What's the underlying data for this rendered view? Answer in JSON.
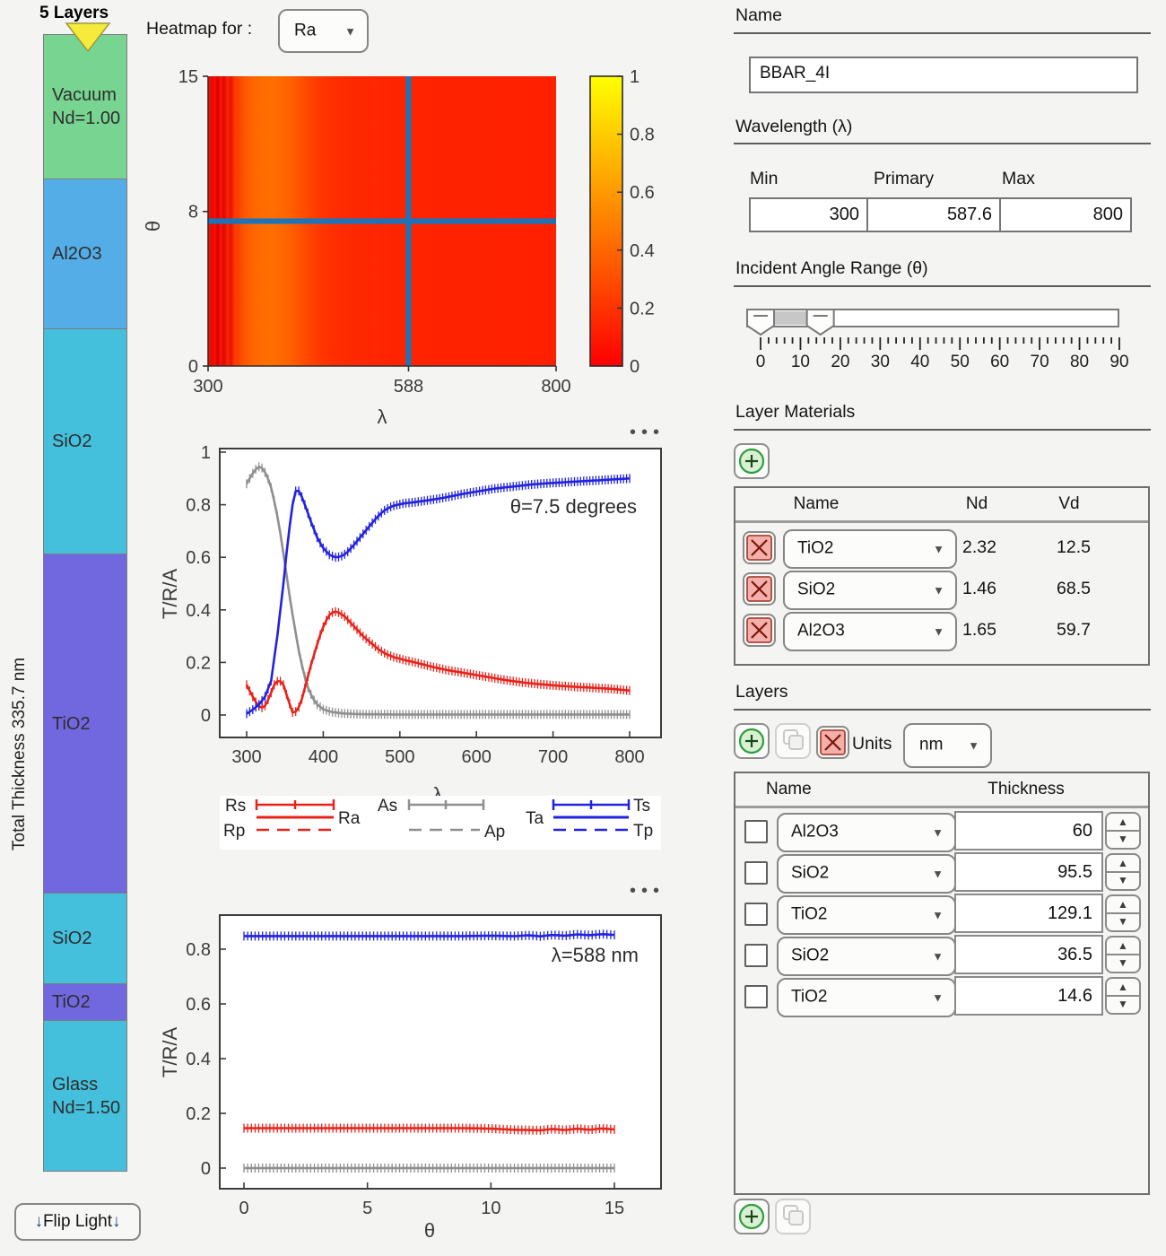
{
  "app": {
    "background": "#f4f4f2"
  },
  "icons": {
    "caret_down": "▼",
    "spinner_up": "▲",
    "spinner_down": "▼",
    "ellipsis": "•••",
    "down_arrow": "↓"
  },
  "stack": {
    "title": "5 Layers",
    "total_thickness": "Total Thickness 335.7 nm",
    "flip": {
      "arrow": "↓",
      "label": "Flip Light"
    },
    "layers": [
      {
        "lines": [
          "Vacuum",
          "Nd=1.00"
        ],
        "color": "#77d591"
      },
      {
        "lines": [
          "Al2O3"
        ],
        "color": "#55ade8"
      },
      {
        "lines": [
          "SiO2"
        ],
        "color": "#45c0dc"
      },
      {
        "lines": [
          "TiO2"
        ],
        "color": "#7168e0"
      },
      {
        "lines": [
          "SiO2"
        ],
        "color": "#45c0dc"
      },
      {
        "lines": [
          "TiO2"
        ],
        "color": "#7168e0"
      },
      {
        "lines": [
          "Glass",
          "Nd=1.50"
        ],
        "color": "#45c0dc"
      }
    ]
  },
  "heatmap_control": {
    "label": "Heatmap for :",
    "selected": "Ra"
  },
  "legend": {
    "entries": [
      "Rs",
      "Ra",
      "Rp",
      "As",
      "Ap",
      "Ta",
      "Ts",
      "Tp"
    ]
  },
  "panel": {
    "name": {
      "label": "Name",
      "value": "BBAR_4I"
    },
    "wavelength": {
      "label": "Wavelength (λ)",
      "min_label": "Min",
      "primary_label": "Primary",
      "max_label": "Max",
      "min": "300",
      "primary": "587.6",
      "max": "800"
    },
    "angle_range": {
      "label": "Incident Angle Range (θ)",
      "min": 0,
      "max": 90,
      "low": 0,
      "high": 15,
      "tick_labels": [
        "0",
        "10",
        "20",
        "30",
        "40",
        "50",
        "60",
        "70",
        "80",
        "90"
      ]
    },
    "materials": {
      "label": "Layer Materials",
      "columns": {
        "name": "Name",
        "nd": "Nd",
        "vd": "Vd"
      },
      "rows": [
        {
          "name": "TiO2",
          "nd": "2.32",
          "vd": "12.5"
        },
        {
          "name": "SiO2",
          "nd": "1.46",
          "vd": "68.5"
        },
        {
          "name": "Al2O3",
          "nd": "1.65",
          "vd": "59.7"
        }
      ]
    },
    "layers": {
      "label": "Layers",
      "units_label": "Units",
      "units": "nm",
      "columns": {
        "name": "Name",
        "thickness": "Thickness"
      },
      "rows": [
        {
          "name": "Al2O3",
          "thickness": "60"
        },
        {
          "name": "SiO2",
          "thickness": "95.5"
        },
        {
          "name": "TiO2",
          "thickness": "129.1"
        },
        {
          "name": "SiO2",
          "thickness": "36.5"
        },
        {
          "name": "TiO2",
          "thickness": "14.6"
        }
      ]
    }
  },
  "chart_data": [
    {
      "id": "reflectance-heatmap",
      "type": "heatmap",
      "xlabel": "λ",
      "ylabel": "θ",
      "xlim": [
        300,
        800
      ],
      "ylim": [
        0,
        15
      ],
      "xticks": [
        "300",
        "588",
        "800"
      ],
      "xtick_values": [
        300,
        588,
        800
      ],
      "yticks": [
        "0",
        "8",
        "15"
      ],
      "ytick_values": [
        0,
        8,
        15
      ],
      "colorbar": {
        "min": 0,
        "max": 1,
        "ticks": [
          "0",
          "0.2",
          "0.4",
          "0.6",
          "0.8",
          "1"
        ],
        "tick_values": [
          0,
          0.2,
          0.4,
          0.6,
          0.8,
          1
        ],
        "colors_bottom_to_top": [
          "#ff0000",
          "#ff8000",
          "#ffff00"
        ]
      },
      "crosshair": {
        "lambda": 588,
        "theta": 7.5,
        "color": "#1874bd"
      },
      "gradient_stops": [
        [
          0.0,
          "#fb1100"
        ],
        [
          0.012,
          "#e80900"
        ],
        [
          0.02,
          "#fa1000"
        ],
        [
          0.028,
          "#d50000"
        ],
        [
          0.036,
          "#fb1600"
        ],
        [
          0.046,
          "#e00500"
        ],
        [
          0.056,
          "#fc2600"
        ],
        [
          0.066,
          "#e81200"
        ],
        [
          0.076,
          "#fd3a00"
        ],
        [
          0.088,
          "#f74200"
        ],
        [
          0.104,
          "#ff5700"
        ],
        [
          0.124,
          "#ff6200"
        ],
        [
          0.15,
          "#ff6b00"
        ],
        [
          0.184,
          "#ff6e00"
        ],
        [
          0.22,
          "#ff6600"
        ],
        [
          0.256,
          "#ff5600"
        ],
        [
          0.29,
          "#ff4500"
        ],
        [
          0.324,
          "#ff3700"
        ],
        [
          0.36,
          "#ff2e00"
        ],
        [
          0.42,
          "#fe2800"
        ],
        [
          0.5,
          "#ff2500"
        ],
        [
          0.6,
          "#ff2300"
        ],
        [
          0.72,
          "#fe2200"
        ],
        [
          0.86,
          "#ff2100"
        ],
        [
          1.0,
          "#ff2000"
        ]
      ]
    },
    {
      "id": "spectrum",
      "type": "line",
      "xlabel": "λ",
      "ylabel": "T/R/A",
      "annotation": "θ=7.5 degrees",
      "xlim": [
        300,
        800
      ],
      "ylim": [
        0,
        1
      ],
      "xticks": [
        "300",
        "400",
        "500",
        "600",
        "700",
        "800"
      ],
      "xtick_values": [
        300,
        400,
        500,
        600,
        700,
        800
      ],
      "yticks": [
        "0",
        "0.2",
        "0.4",
        "0.6",
        "0.8",
        "1"
      ],
      "ytick_values": [
        0,
        0.2,
        0.4,
        0.6,
        0.8,
        1
      ],
      "series": [
        {
          "name": "A (absorptance)",
          "color": "#8f8f8f",
          "points": [
            [
              300,
              0.88
            ],
            [
              305,
              0.905
            ],
            [
              310,
              0.928
            ],
            [
              315,
              0.945
            ],
            [
              320,
              0.94
            ],
            [
              326,
              0.915
            ],
            [
              332,
              0.865
            ],
            [
              338,
              0.79
            ],
            [
              344,
              0.69
            ],
            [
              350,
              0.575
            ],
            [
              356,
              0.455
            ],
            [
              362,
              0.345
            ],
            [
              368,
              0.245
            ],
            [
              374,
              0.165
            ],
            [
              380,
              0.105
            ],
            [
              386,
              0.065
            ],
            [
              392,
              0.04
            ],
            [
              400,
              0.022
            ],
            [
              410,
              0.012
            ],
            [
              425,
              0.006
            ],
            [
              450,
              0.003
            ],
            [
              500,
              0.002
            ],
            [
              600,
              0.002
            ],
            [
              700,
              0.002
            ],
            [
              800,
              0.002
            ]
          ]
        },
        {
          "name": "R (reflectance)",
          "color": "#e8231a",
          "points": [
            [
              300,
              0.115
            ],
            [
              306,
              0.08
            ],
            [
              312,
              0.05
            ],
            [
              318,
              0.025
            ],
            [
              324,
              0.035
            ],
            [
              330,
              0.07
            ],
            [
              336,
              0.115
            ],
            [
              342,
              0.135
            ],
            [
              348,
              0.115
            ],
            [
              354,
              0.06
            ],
            [
              360,
              0.01
            ],
            [
              366,
              0.015
            ],
            [
              372,
              0.06
            ],
            [
              378,
              0.125
            ],
            [
              384,
              0.19
            ],
            [
              390,
              0.25
            ],
            [
              396,
              0.305
            ],
            [
              402,
              0.35
            ],
            [
              408,
              0.38
            ],
            [
              414,
              0.395
            ],
            [
              420,
              0.39
            ],
            [
              428,
              0.375
            ],
            [
              436,
              0.35
            ],
            [
              444,
              0.325
            ],
            [
              452,
              0.3
            ],
            [
              462,
              0.275
            ],
            [
              472,
              0.25
            ],
            [
              482,
              0.232
            ],
            [
              492,
              0.22
            ],
            [
              505,
              0.21
            ],
            [
              520,
              0.2
            ],
            [
              540,
              0.185
            ],
            [
              560,
              0.172
            ],
            [
              580,
              0.162
            ],
            [
              600,
              0.152
            ],
            [
              620,
              0.142
            ],
            [
              640,
              0.132
            ],
            [
              660,
              0.124
            ],
            [
              680,
              0.118
            ],
            [
              700,
              0.113
            ],
            [
              725,
              0.108
            ],
            [
              750,
              0.104
            ],
            [
              775,
              0.1
            ],
            [
              800,
              0.093
            ]
          ]
        },
        {
          "name": "T (transmittance)",
          "color": "#2222e0",
          "points": [
            [
              300,
              0.005
            ],
            [
              308,
              0.02
            ],
            [
              316,
              0.04
            ],
            [
              324,
              0.07
            ],
            [
              332,
              0.13
            ],
            [
              340,
              0.3
            ],
            [
              348,
              0.5
            ],
            [
              354,
              0.67
            ],
            [
              360,
              0.8
            ],
            [
              365,
              0.865
            ],
            [
              370,
              0.845
            ],
            [
              376,
              0.8
            ],
            [
              384,
              0.735
            ],
            [
              392,
              0.675
            ],
            [
              400,
              0.635
            ],
            [
              408,
              0.61
            ],
            [
              415,
              0.6
            ],
            [
              422,
              0.602
            ],
            [
              430,
              0.615
            ],
            [
              438,
              0.64
            ],
            [
              448,
              0.675
            ],
            [
              458,
              0.71
            ],
            [
              468,
              0.745
            ],
            [
              478,
              0.775
            ],
            [
              490,
              0.795
            ],
            [
              505,
              0.805
            ],
            [
              520,
              0.81
            ],
            [
              540,
              0.818
            ],
            [
              560,
              0.828
            ],
            [
              580,
              0.84
            ],
            [
              600,
              0.85
            ],
            [
              625,
              0.862
            ],
            [
              650,
              0.87
            ],
            [
              675,
              0.878
            ],
            [
              700,
              0.883
            ],
            [
              730,
              0.888
            ],
            [
              760,
              0.893
            ],
            [
              800,
              0.9
            ]
          ]
        }
      ]
    },
    {
      "id": "angle-scan",
      "type": "line",
      "xlabel": "θ",
      "ylabel": "T/R/A",
      "annotation": "λ=588 nm",
      "xlim": [
        0,
        15
      ],
      "ylim": [
        0,
        0.9
      ],
      "xticks": [
        "0",
        "5",
        "10",
        "15"
      ],
      "xtick_values": [
        0,
        5,
        10,
        15
      ],
      "yticks": [
        "0",
        "0.2",
        "0.4",
        "0.6",
        "0.8"
      ],
      "ytick_values": [
        0,
        0.2,
        0.4,
        0.6,
        0.8
      ],
      "series": [
        {
          "name": "A (absorptance)",
          "color": "#8f8f8f",
          "points": [
            [
              0,
              0.0
            ],
            [
              15,
              0.0
            ]
          ]
        },
        {
          "name": "R (reflectance)",
          "color": "#e8231a",
          "points": [
            [
              0,
              0.146
            ],
            [
              9,
              0.146
            ],
            [
              10,
              0.144
            ],
            [
              11,
              0.14
            ],
            [
              12,
              0.138
            ],
            [
              12.5,
              0.143
            ],
            [
              13,
              0.139
            ],
            [
              13.5,
              0.144
            ],
            [
              14,
              0.14
            ],
            [
              14.5,
              0.145
            ],
            [
              15,
              0.141
            ]
          ]
        },
        {
          "name": "T (transmittance)",
          "color": "#2222e0",
          "points": [
            [
              0,
              0.848
            ],
            [
              9,
              0.848
            ],
            [
              10,
              0.849
            ],
            [
              11,
              0.8475
            ],
            [
              11.5,
              0.851
            ],
            [
              12,
              0.847
            ],
            [
              12.5,
              0.852
            ],
            [
              13,
              0.849
            ],
            [
              13.5,
              0.854
            ],
            [
              14,
              0.851
            ],
            [
              14.5,
              0.855
            ],
            [
              15,
              0.852
            ]
          ]
        }
      ]
    }
  ]
}
